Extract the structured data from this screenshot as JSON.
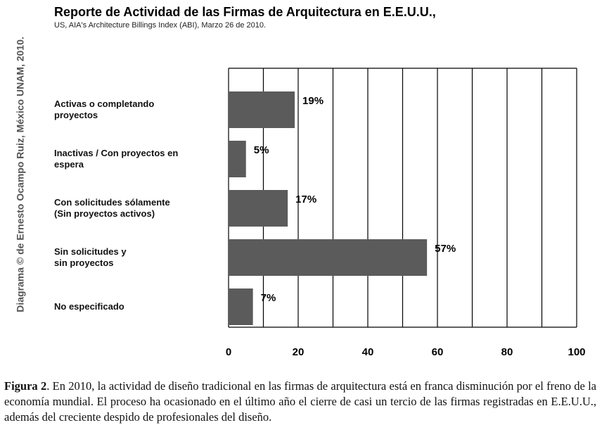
{
  "chart_data": {
    "type": "barh",
    "title": "Reporte de Actividad de las Firmas de Arquitectura en E.E.U.U.,",
    "subtitle": "US, AIA's Architecture Billings Index (ABI), Marzo 26 de 2010.",
    "side_note": "Diagrama © de Ernesto Ocampo Ruiz, México UNAM, 2010.",
    "categories": [
      "Activas o completando\nproyectos",
      "Inactivas / Con proyectos en\nespera",
      "Con solicitudes sólamente\n(Sin proyectos activos)",
      "Sin solicitudes y\nsin proyectos",
      "No especificado"
    ],
    "values": [
      19,
      5,
      17,
      57,
      7
    ],
    "value_labels": [
      "19%",
      "5%",
      "17%",
      "57%",
      "7%"
    ],
    "color": "#5b5b5b",
    "xlim": [
      0,
      100
    ],
    "xticks": [
      0,
      20,
      40,
      60,
      80,
      100
    ],
    "xgrid": [
      0,
      10,
      20,
      30,
      40,
      50,
      60,
      70,
      80,
      90,
      100
    ]
  },
  "caption": {
    "label": "Figura 2",
    "text": ". En 2010, la actividad de diseño tradicional en las firmas de arquitectura está en franca disminución por el freno de la economía mundial. El proceso ha ocasionado en el último año el cierre de casi un tercio de las firmas registradas en E.E.U.U., además del creciente despido de profesionales del diseño."
  }
}
